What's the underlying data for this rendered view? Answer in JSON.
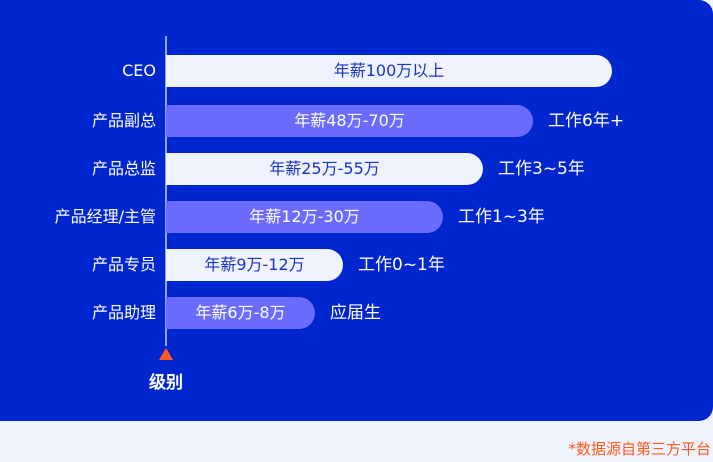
{
  "axis_label": "级别",
  "rows": [
    {
      "level": "CEO",
      "salary": "年薪100万以上",
      "experience": ""
    },
    {
      "level": "产品副总",
      "salary": "年薪48万-70万",
      "experience": "工作6年+"
    },
    {
      "level": "产品总监",
      "salary": "年薪25万-55万",
      "experience": "工作3~5年"
    },
    {
      "level": "产品经理/主管",
      "salary": "年薪12万-30万",
      "experience": "工作1~3年"
    },
    {
      "level": "产品专员",
      "salary": "年薪9万-12万",
      "experience": "工作0~1年"
    },
    {
      "level": "产品助理",
      "salary": "年薪6万-8万",
      "experience": "应届生"
    }
  ],
  "footnote": "*数据源自第三方平台",
  "colors": {
    "panel": "#0026d0",
    "bar_light": "#eef3fd",
    "bar_purple": "#6b6bff",
    "accent": "#ff5a1f"
  }
}
